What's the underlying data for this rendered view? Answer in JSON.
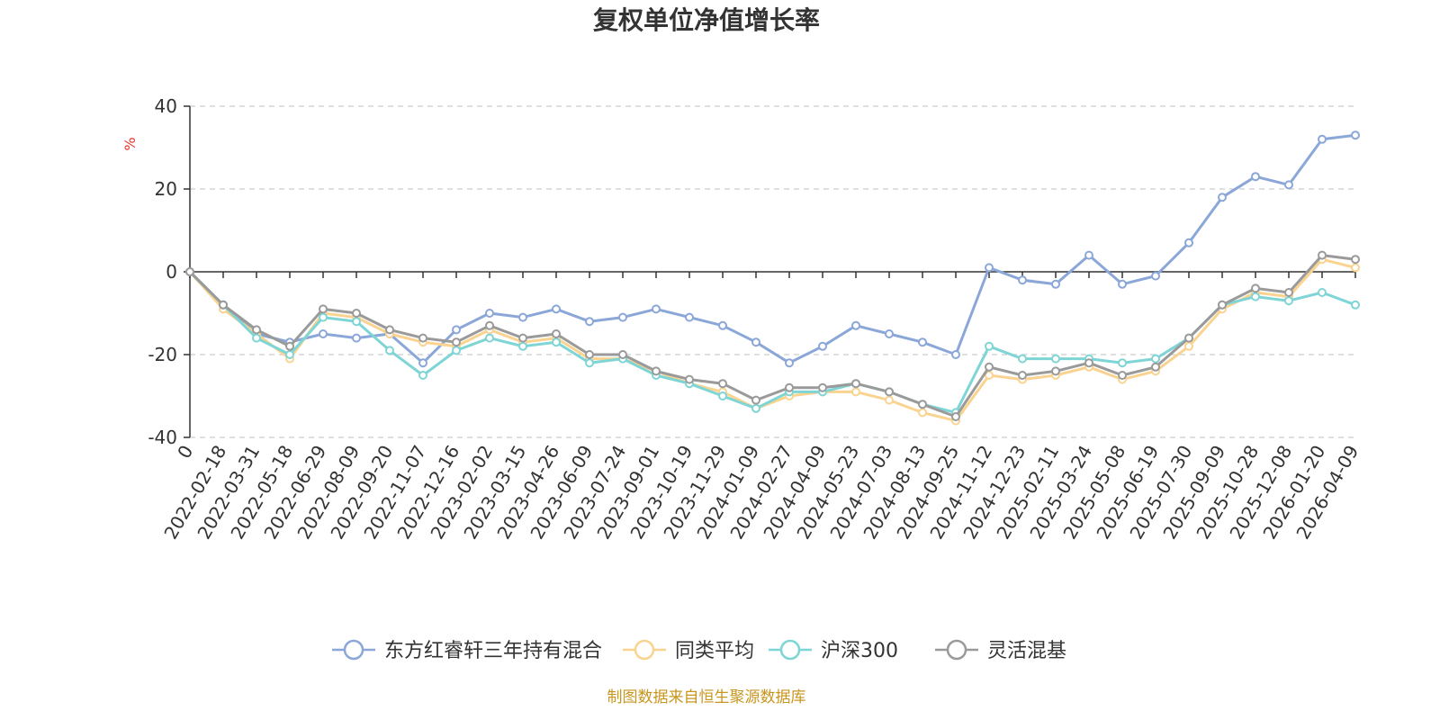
{
  "chart_data": {
    "type": "line",
    "title": "复权单位净值增长率",
    "ylabel": "%",
    "ylim": [
      -40,
      40
    ],
    "yticks": [
      "40",
      "20",
      "0",
      "-20",
      "-40"
    ],
    "ytick_values": [
      40,
      20,
      0,
      -20,
      -40
    ],
    "xticks": [
      "0",
      "2022-02-18",
      "2022-03-31",
      "2022-05-18",
      "2022-06-29",
      "2022-08-09",
      "2022-09-20",
      "2022-11-07",
      "2022-12-16",
      "2023-02-02",
      "2023-03-15",
      "2023-04-26",
      "2023-06-09",
      "2023-07-24",
      "2023-09-01",
      "2023-10-19",
      "2023-11-29",
      "2024-01-09",
      "2024-02-27",
      "2024-04-09",
      "2024-05-23",
      "2024-07-03",
      "2024-08-13",
      "2024-09-25",
      "2024-11-12",
      "2024-12-23",
      "2025-02-11",
      "2025-03-24",
      "2025-05-08",
      "2025-06-19",
      "2025-07-30",
      "2025-09-09",
      "2025-10-28",
      "2025-12-08",
      "2026-01-20",
      "2026-04-09"
    ],
    "x": [
      "0",
      "2022-02-18",
      "2022-03-31",
      "2022-05-18",
      "2022-06-29",
      "2022-08-09",
      "2022-09-20",
      "2022-11-07",
      "2022-12-16",
      "2023-02-02",
      "2023-03-15",
      "2023-04-26",
      "2023-06-09",
      "2023-07-24",
      "2023-09-01",
      "2023-10-19",
      "2023-11-29",
      "2024-01-09",
      "2024-02-27",
      "2024-04-09",
      "2024-05-23",
      "2024-07-03",
      "2024-08-13",
      "2024-09-25",
      "2024-11-12",
      "2024-12-23",
      "2025-02-11",
      "2025-03-24",
      "2025-05-08",
      "2025-06-19",
      "2025-07-30",
      "2025-09-09",
      "2025-10-28",
      "2025-12-08",
      "2026-01-20",
      "2026-04-09"
    ],
    "series": [
      {
        "name": "东方红睿轩三年持有混合",
        "color": "#8ba7d8",
        "values": [
          0,
          -8,
          -15,
          -17,
          -15,
          -16,
          -15,
          -22,
          -14,
          -10,
          -11,
          -9,
          -12,
          -11,
          -9,
          -11,
          -13,
          -17,
          -22,
          -18,
          -13,
          -15,
          -17,
          -20,
          1,
          -2,
          -3,
          4,
          -3,
          -1,
          7,
          18,
          23,
          21,
          32,
          33
        ]
      },
      {
        "name": "同类平均",
        "color": "#f9d38f",
        "values": [
          0,
          -9,
          -15,
          -21,
          -10,
          -11,
          -15,
          -17,
          -18,
          -14,
          -17,
          -16,
          -21,
          -21,
          -24,
          -27,
          -29,
          -33,
          -30,
          -29,
          -29,
          -31,
          -34,
          -36,
          -25,
          -26,
          -25,
          -23,
          -26,
          -24,
          -18,
          -9,
          -5,
          -6,
          3,
          1
        ]
      },
      {
        "name": "沪深300",
        "color": "#7fd5d5",
        "values": [
          0,
          -8,
          -16,
          -20,
          -11,
          -12,
          -19,
          -25,
          -19,
          -16,
          -18,
          -17,
          -22,
          -21,
          -25,
          -27,
          -30,
          -33,
          -29,
          -29,
          -27,
          -29,
          -32,
          -34,
          -18,
          -21,
          -21,
          -21,
          -22,
          -21,
          -16,
          -8,
          -6,
          -7,
          -5,
          -8
        ]
      },
      {
        "name": "灵活混基",
        "color": "#9a9a9a",
        "values": [
          0,
          -8,
          -14,
          -18,
          -9,
          -10,
          -14,
          -16,
          -17,
          -13,
          -16,
          -15,
          -20,
          -20,
          -24,
          -26,
          -27,
          -31,
          -28,
          -28,
          -27,
          -29,
          -32,
          -35,
          -23,
          -25,
          -24,
          -22,
          -25,
          -23,
          -16,
          -8,
          -4,
          -5,
          4,
          3
        ]
      }
    ],
    "grid": true,
    "legend": "bottom"
  },
  "source_note": "制图数据来自恒生聚源数据库"
}
